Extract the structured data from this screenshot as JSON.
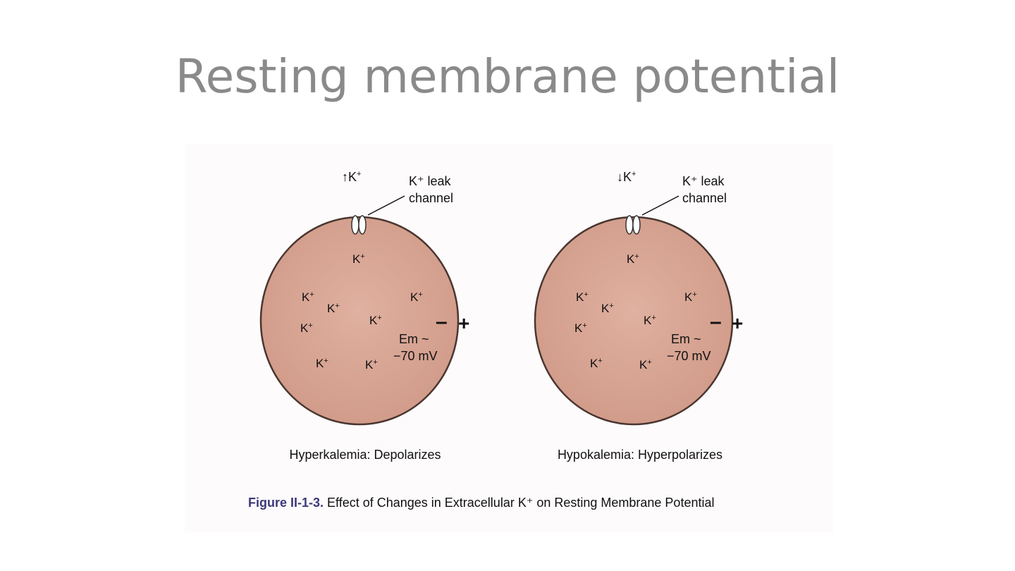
{
  "slide": {
    "title": "Resting membrane potential"
  },
  "ion_symbol": "K",
  "ion_charge": "+",
  "cells": [
    {
      "id": "hyperkalemia",
      "concentration_arrow": "↑",
      "channel_label_line1": "K⁺ leak",
      "channel_label_line2": "channel",
      "em_line1": "Em ~",
      "em_line2": "−70 mV",
      "minus_sign": "–",
      "plus_sign": "+",
      "caption": "Hyperkalemia: Depolarizes"
    },
    {
      "id": "hypokalemia",
      "concentration_arrow": "↓",
      "channel_label_line1": "K⁺ leak",
      "channel_label_line2": "channel",
      "em_line1": "Em ~",
      "em_line2": "−70 mV",
      "minus_sign": "–",
      "plus_sign": "+",
      "caption": "Hypokalemia: Hyperpolarizes"
    }
  ],
  "figure_caption": {
    "number": "Figure II-1-3.",
    "text": " Effect of Changes in Extracellular K⁺ on Resting Membrane Potential"
  },
  "colors": {
    "cell_fill": "#d9a594",
    "cell_stroke": "#4a3630",
    "title": "#8a8a8a",
    "caption_number": "#3b3a7a"
  }
}
